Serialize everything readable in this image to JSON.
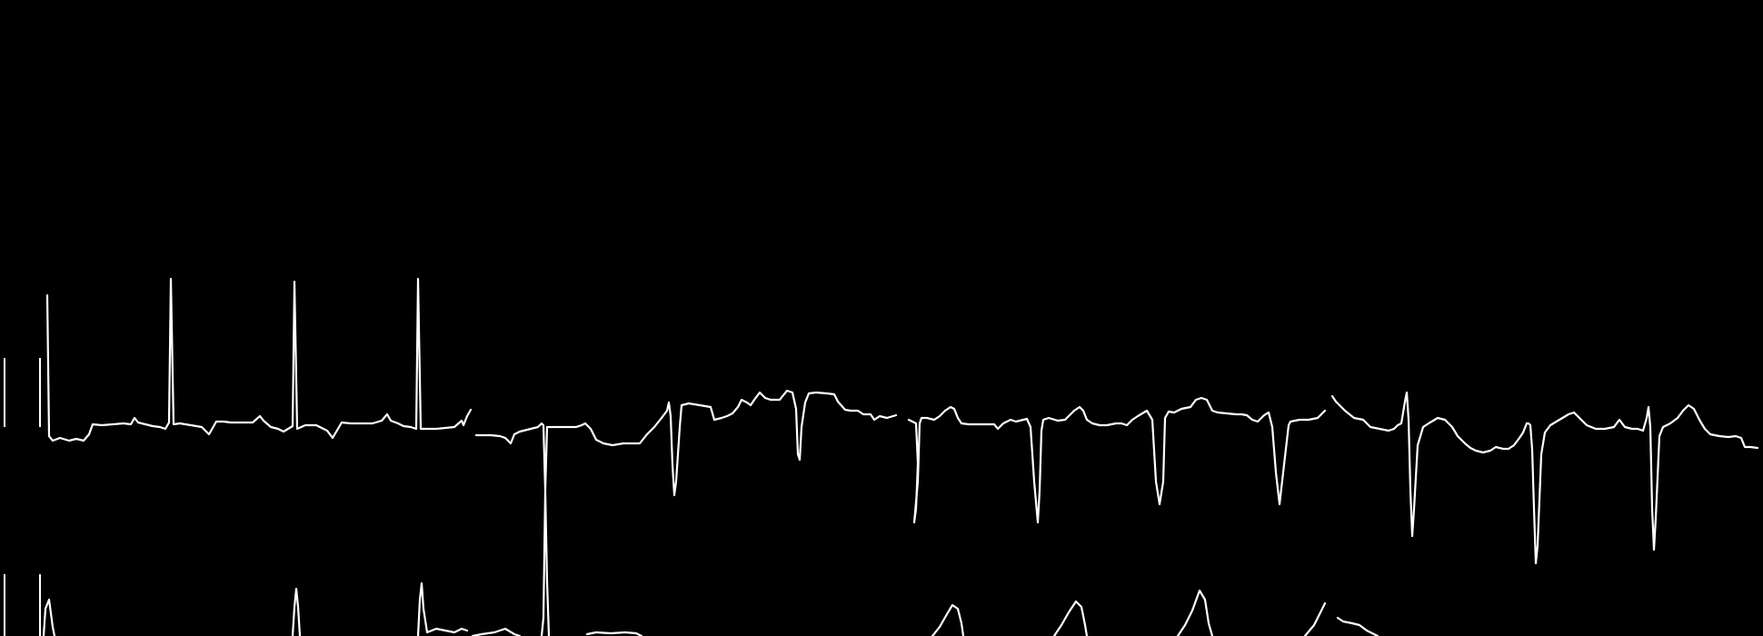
{
  "ecg_strip": {
    "background_color": "#000000",
    "trace_color": "#ffffff",
    "rows": [
      {
        "id": "row-1",
        "segments": [
          {
            "id": "seg-1",
            "beats": 3,
            "morphology": "upright-tall-r"
          },
          {
            "id": "seg-2",
            "beats": 3,
            "morphology": "deep-s-after-large-deflection"
          },
          {
            "id": "seg-3",
            "beats": 4,
            "morphology": "qs-with-upright-t"
          },
          {
            "id": "seg-4",
            "beats": 3,
            "morphology": "small-r-deep-s-with-upright-t"
          }
        ]
      },
      {
        "id": "row-2",
        "segments": [
          {
            "id": "seg-1",
            "beats": 3,
            "morphology": "upright-r"
          },
          {
            "id": "seg-2",
            "beats": 2,
            "morphology": "deep-s-spike"
          },
          {
            "id": "seg-3",
            "beats": 4,
            "morphology": "peaked-t"
          },
          {
            "id": "seg-4",
            "beats": 1,
            "morphology": "flat"
          }
        ]
      }
    ]
  }
}
